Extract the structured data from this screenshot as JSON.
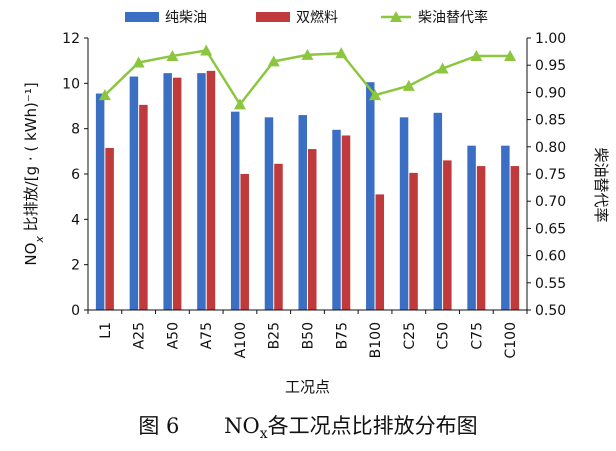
{
  "chart_data": {
    "type": "bar",
    "categories": [
      "L1",
      "A25",
      "A50",
      "A75",
      "A100",
      "B25",
      "B50",
      "B75",
      "B100",
      "C25",
      "C50",
      "C75",
      "C100"
    ],
    "series": [
      {
        "name": "纯柴油",
        "color": "#3b6fc4",
        "axis": "left",
        "values": [
          9.55,
          10.3,
          10.45,
          10.45,
          8.75,
          8.5,
          8.6,
          7.95,
          10.05,
          8.5,
          8.7,
          7.25,
          7.25
        ]
      },
      {
        "name": "双燃料",
        "color": "#c0393b",
        "axis": "left",
        "values": [
          7.15,
          9.05,
          10.25,
          10.55,
          6.0,
          6.45,
          7.1,
          7.7,
          5.1,
          6.05,
          6.6,
          6.35,
          6.35
        ]
      },
      {
        "name": "柴油替代率",
        "type": "line",
        "color": "#8cc63f",
        "axis": "right",
        "values": [
          0.895,
          0.955,
          0.967,
          0.977,
          0.878,
          0.957,
          0.969,
          0.972,
          0.895,
          0.912,
          0.944,
          0.967,
          0.967
        ]
      }
    ],
    "xlabel": "工况点",
    "ylabel_main": "NO",
    "ylabel_sub": "x",
    "ylabel_rest": " 比排放/[g · ( kWh)⁻¹]",
    "y2label": "柴油替代率",
    "ylim": [
      0,
      12
    ],
    "yticks": [
      0,
      2,
      4,
      6,
      8,
      10,
      12
    ],
    "y2lim": [
      0.5,
      1.0
    ],
    "y2ticks": [
      "0.50",
      "0.55",
      "0.60",
      "0.65",
      "0.70",
      "0.75",
      "0.80",
      "0.85",
      "0.90",
      "0.95",
      "1.00"
    ],
    "grid": false,
    "legend_position": "top"
  },
  "caption": {
    "figure_number": "图 6",
    "main": "NO",
    "sub": "x",
    "rest": " 各工况点比排放分布图"
  }
}
